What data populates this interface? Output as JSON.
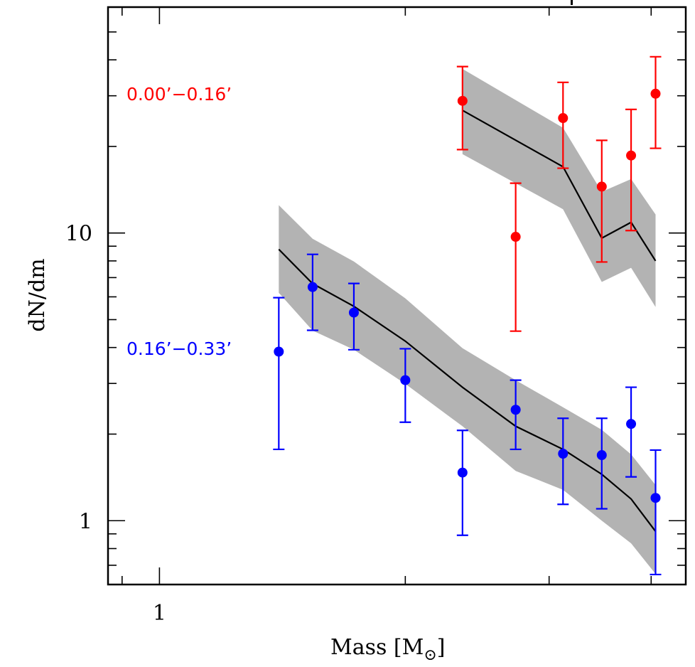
{
  "chart_data": {
    "type": "scatter",
    "title": "",
    "xlabel": "Mass [M",
    "xlabel_subscript": "⊙",
    "xlabel_suffix": "]",
    "ylabel": "dN/dm",
    "xscale": "log",
    "yscale": "log",
    "xlim": [
      0.865,
      4.41
    ],
    "ylim": [
      0.6,
      61
    ],
    "x_major_ticks": [
      {
        "value": 1,
        "label": "1"
      }
    ],
    "x_minor_ticks": [
      0.9,
      2,
      3,
      4
    ],
    "y_major_ticks": [
      {
        "value": 1,
        "label": "1"
      },
      {
        "value": 10,
        "label": "10"
      }
    ],
    "y_minor_ticks": [
      0.6,
      0.7,
      0.8,
      0.9,
      2,
      3,
      4,
      5,
      6,
      7,
      8,
      9,
      20,
      30,
      40,
      50
    ],
    "grid": false,
    "legend": "none",
    "colors": {
      "band": "#b3b3b3",
      "model": "#000000"
    },
    "series": [
      {
        "name": "0.00'-0.16'",
        "label": "0.00’−0.16’",
        "color": "#ff0000",
        "points": [
          {
            "x": 2.35,
            "y": 28.8,
            "ylo": 19.5,
            "yhi": 37.9
          },
          {
            "x": 2.73,
            "y": 9.7,
            "ylo": 4.56,
            "yhi": 14.9
          },
          {
            "x": 3.12,
            "y": 25.1,
            "ylo": 16.8,
            "yhi": 33.4
          },
          {
            "x": 3.48,
            "y": 14.5,
            "ylo": 7.93,
            "yhi": 21.0
          },
          {
            "x": 3.78,
            "y": 18.6,
            "ylo": 10.2,
            "yhi": 26.9
          },
          {
            "x": 4.05,
            "y": 30.5,
            "ylo": 19.7,
            "yhi": 41.0
          }
        ],
        "model": {
          "x": [
            2.35,
            3.12,
            3.48,
            3.78,
            4.05
          ],
          "y": [
            26.7,
            17.0,
            9.6,
            10.9,
            8.0
          ],
          "upper": [
            37.2,
            23.2,
            13.9,
            15.4,
            11.6
          ],
          "lower": [
            18.8,
            12.1,
            6.76,
            7.57,
            5.53
          ]
        }
      },
      {
        "name": "0.16'-0.33'",
        "label": "0.16’−0.33’",
        "color": "#0000ff",
        "points": [
          {
            "x": 1.4,
            "y": 3.87,
            "ylo": 1.77,
            "yhi": 5.96
          },
          {
            "x": 1.54,
            "y": 6.49,
            "ylo": 4.59,
            "yhi": 8.43
          },
          {
            "x": 1.73,
            "y": 5.29,
            "ylo": 3.93,
            "yhi": 6.68
          },
          {
            "x": 2.0,
            "y": 3.08,
            "ylo": 2.2,
            "yhi": 3.96
          },
          {
            "x": 2.35,
            "y": 1.47,
            "ylo": 0.89,
            "yhi": 2.06
          },
          {
            "x": 2.73,
            "y": 2.43,
            "ylo": 1.77,
            "yhi": 3.08
          },
          {
            "x": 3.12,
            "y": 1.71,
            "ylo": 1.14,
            "yhi": 2.27
          },
          {
            "x": 3.48,
            "y": 1.69,
            "ylo": 1.1,
            "yhi": 2.27
          },
          {
            "x": 3.78,
            "y": 2.17,
            "ylo": 1.42,
            "yhi": 2.91
          },
          {
            "x": 4.05,
            "y": 1.2,
            "ylo": 0.65,
            "yhi": 1.76
          }
        ],
        "model": {
          "x": [
            1.4,
            1.54,
            1.73,
            2.0,
            2.35,
            2.73,
            3.12,
            3.48,
            3.78,
            4.05
          ],
          "y": [
            8.78,
            6.67,
            5.56,
            4.21,
            2.91,
            2.13,
            1.77,
            1.45,
            1.19,
            0.918
          ],
          "upper": [
            12.5,
            9.55,
            7.96,
            5.93,
            3.98,
            3.08,
            2.48,
            2.07,
            1.7,
            1.33
          ],
          "lower": [
            6.2,
            4.58,
            3.93,
            2.99,
            2.13,
            1.49,
            1.28,
            1.0,
            0.834,
            0.653
          ]
        }
      }
    ]
  }
}
